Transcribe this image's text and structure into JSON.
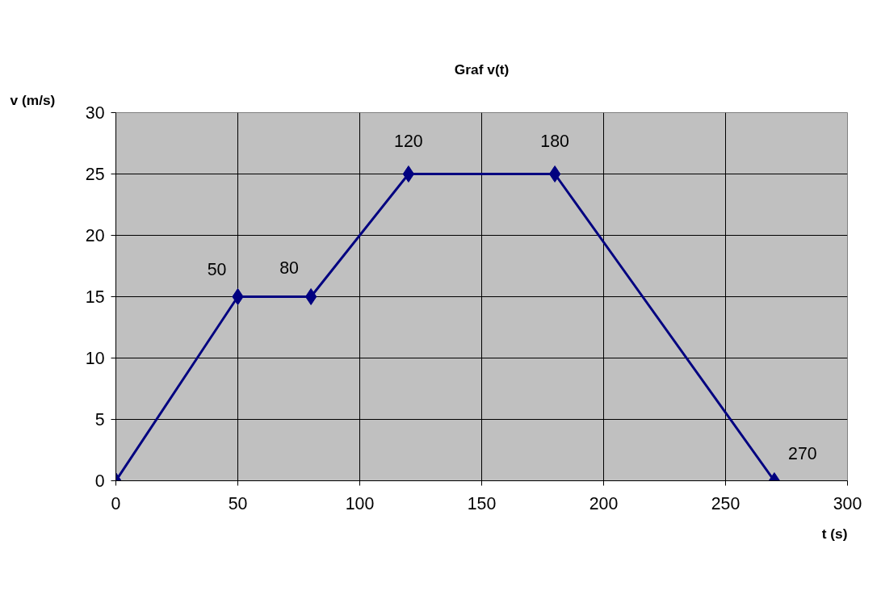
{
  "chart_data": {
    "type": "line",
    "title": "Graf v(t)",
    "xlabel": "t (s)",
    "ylabel": "v (m/s)",
    "x": [
      0,
      50,
      80,
      120,
      180,
      270
    ],
    "series": [
      {
        "color": "#000080",
        "values": [
          0,
          15,
          15,
          25,
          25,
          0
        ]
      }
    ],
    "xlim": [
      0,
      300
    ],
    "xticks": [
      0,
      50,
      100,
      150,
      200,
      250,
      300
    ],
    "ylim": [
      0,
      30
    ],
    "yticks": [
      0,
      5,
      10,
      15,
      20,
      25,
      30
    ],
    "grid": true,
    "marker": "diamond",
    "line_style": "solid",
    "annotations": [
      {
        "text": "50",
        "x": 50,
        "y": 15
      },
      {
        "text": "80",
        "x": 80,
        "y": 15
      },
      {
        "text": "120",
        "x": 120,
        "y": 25
      },
      {
        "text": "180",
        "x": 180,
        "y": 25
      },
      {
        "text": "270",
        "x": 270,
        "y": 0
      }
    ]
  }
}
